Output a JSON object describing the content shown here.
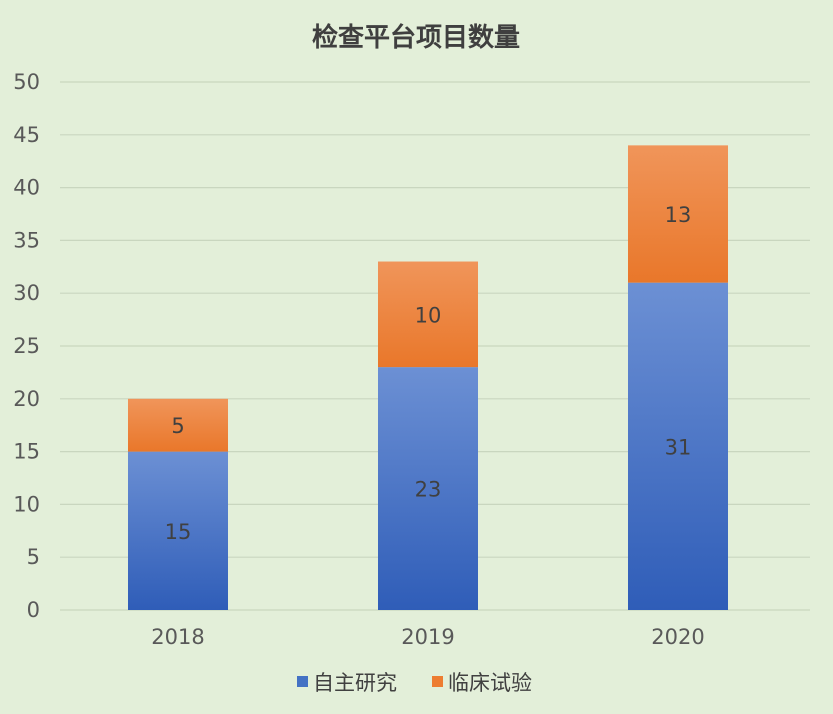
{
  "chart_data": {
    "type": "bar",
    "stacked": true,
    "title": "检查平台项目数量",
    "categories": [
      "2018",
      "2019",
      "2020"
    ],
    "series": [
      {
        "name": "自主研究",
        "values": [
          15,
          23,
          31
        ],
        "color": "#4472c4"
      },
      {
        "name": "临床试验",
        "values": [
          5,
          10,
          13
        ],
        "color": "#ed7d31"
      }
    ],
    "ylim": [
      0,
      50
    ],
    "yticks": [
      0,
      5,
      10,
      15,
      20,
      25,
      30,
      35,
      40,
      45,
      50
    ],
    "grid": true,
    "legend_position": "bottom"
  }
}
